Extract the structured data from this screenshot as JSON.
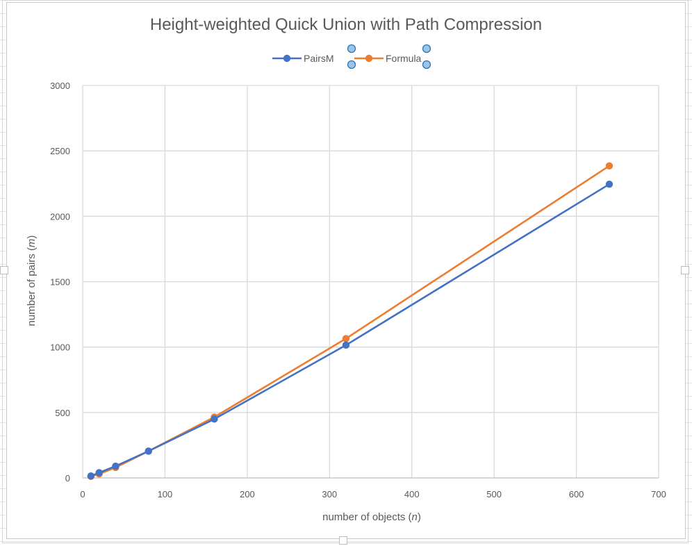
{
  "chart_data": {
    "type": "line",
    "title": "Height-weighted Quick Union with Path Compression",
    "xlabel": "number of objects (n)",
    "ylabel": "number of pairs (m)",
    "xlim": [
      0,
      700
    ],
    "ylim": [
      0,
      3000
    ],
    "xticks": [
      0,
      100,
      200,
      300,
      400,
      500,
      600,
      700
    ],
    "yticks": [
      0,
      500,
      1000,
      1500,
      2000,
      2500,
      3000
    ],
    "grid": true,
    "legend_position": "top",
    "series": [
      {
        "name": "PairsM",
        "color": "#4472C4",
        "points": [
          [
            10,
            15
          ],
          [
            20,
            40
          ],
          [
            40,
            90
          ],
          [
            80,
            205
          ],
          [
            160,
            450
          ],
          [
            320,
            1015
          ],
          [
            640,
            2245
          ]
        ]
      },
      {
        "name": "Formula",
        "color": "#ED7D31",
        "points": [
          [
            10,
            12
          ],
          [
            20,
            30
          ],
          [
            40,
            80
          ],
          [
            80,
            205
          ],
          [
            160,
            465
          ],
          [
            320,
            1065
          ],
          [
            640,
            2385
          ]
        ]
      }
    ]
  },
  "selection_handle_color": "#9DC3E6"
}
